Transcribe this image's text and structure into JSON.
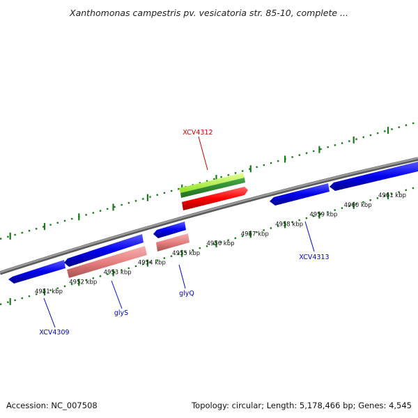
{
  "title": "Xanthomonas campestris pv. vesicatoria str. 85-10, complete ...",
  "footer": {
    "accession": "Accession: NC_007508",
    "topology": "Topology: circular; Length: 5,178,466 bp; Genes: 4,545"
  },
  "ticks": {
    "labels": [
      "4951 kbp",
      "4952 kbp",
      "4953 kbp",
      "4954 kbp",
      "4955 kbp",
      "4956 kbp",
      "4957 kbp",
      "4958 kbp",
      "4959 kbp",
      "4960 kbp",
      "4961 kbp"
    ]
  },
  "genes": [
    {
      "name": "XCV4309",
      "color": "#0000cc"
    },
    {
      "name": "glyS",
      "color": "#0000cc"
    },
    {
      "name": "glyQ",
      "color": "#0000cc"
    },
    {
      "name": "XCV4312",
      "color": "#cc0000"
    },
    {
      "name": "XCV4313",
      "color": "#0000cc"
    }
  ],
  "colors": {
    "backbone": "#808080",
    "tick_marks": "#1a7a1a",
    "forward_cds": "#ff0000",
    "forward_gene": "#2e8b2e",
    "forward_rna": "#99ee33",
    "reverse_cds": "#0000ee",
    "reverse_gene": "#e88080"
  }
}
